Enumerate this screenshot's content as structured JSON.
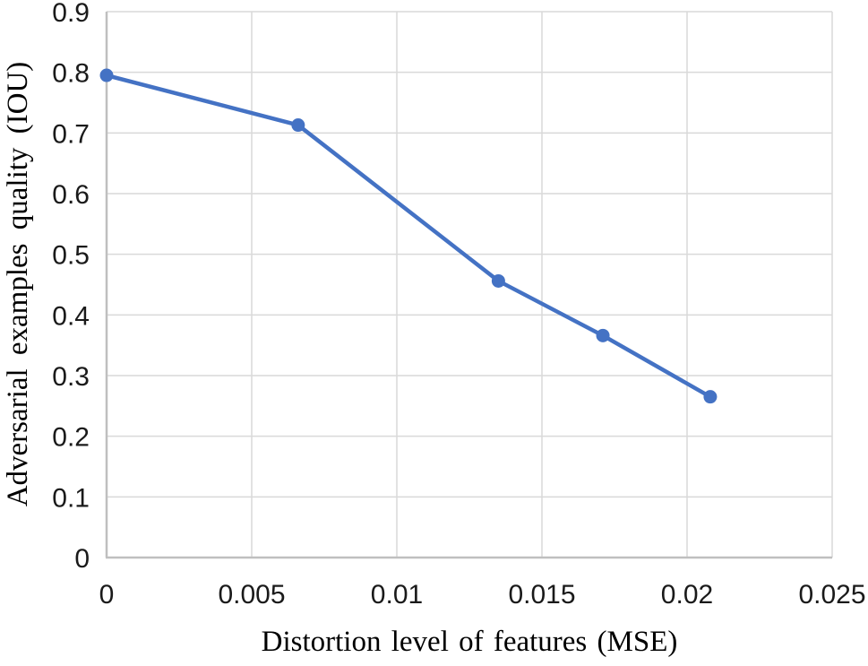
{
  "chart_data": {
    "type": "line",
    "xlabel": "Distortion level of features (MSE)",
    "ylabel": "Adversarial examples quality (IOU)",
    "xlim": [
      0,
      0.025
    ],
    "ylim": [
      0,
      0.9
    ],
    "x_ticks": [
      "0",
      "0.005",
      "0.01",
      "0.015",
      "0.02",
      "0.025"
    ],
    "x_tick_values": [
      0,
      0.005,
      0.01,
      0.015,
      0.02,
      0.025
    ],
    "y_ticks": [
      "0",
      "0.1",
      "0.2",
      "0.3",
      "0.4",
      "0.5",
      "0.6",
      "0.7",
      "0.8",
      "0.9"
    ],
    "y_tick_values": [
      0,
      0.1,
      0.2,
      0.3,
      0.4,
      0.5,
      0.6,
      0.7,
      0.8,
      0.9
    ],
    "grid": true,
    "legend": false,
    "series": [
      {
        "x": [
          0,
          0.0066,
          0.0135,
          0.0171,
          0.0208
        ],
        "y": [
          0.795,
          0.713,
          0.456,
          0.366,
          0.265
        ],
        "marker": "circle"
      }
    ],
    "colors": {
      "line": "#4472C4",
      "marker": "#4472C4",
      "gridline": "#D9D9D9",
      "axis_line": "#BFBFBF",
      "tick_text": "#1A1A1A",
      "title_text": "#000000",
      "background": "#FFFFFF"
    }
  }
}
